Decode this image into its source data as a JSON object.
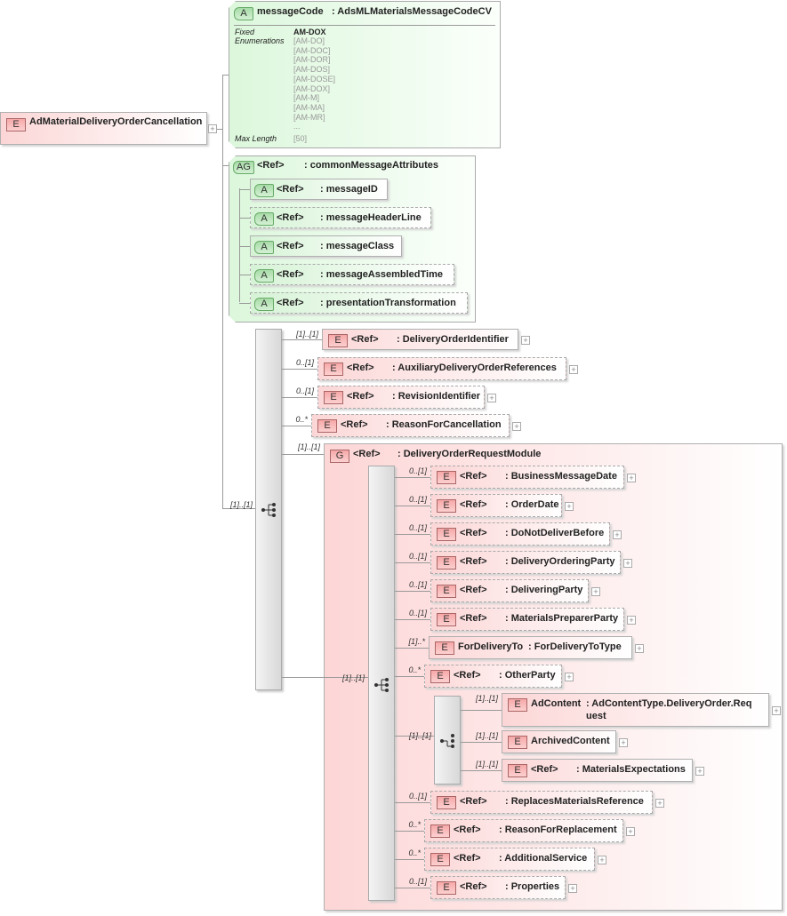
{
  "root": {
    "badge": "E",
    "name": "AdMaterialDeliveryOrderCancellation"
  },
  "message_code": {
    "badge": "A",
    "name": "messageCode",
    "type": ": AdsMLMaterialsMessageCodeCV",
    "fixed_label": "Fixed",
    "enumerations_label": "Enumerations",
    "fixed_value": "AM-DOX",
    "enumerations": [
      "[AM-DO]",
      "[AM-DOC]",
      "[AM-DOR]",
      "[AM-DOS]",
      "[AM-DOSE]",
      "[AM-DOX]",
      "[AM-M]",
      "[AM-MA]",
      "[AM-MR]"
    ],
    "more": "...",
    "max_length_label": "Max Length",
    "max_length": "[50]"
  },
  "attribute_group": {
    "badge": "AG",
    "ref": "<Ref>",
    "name": ": commonMessageAttributes",
    "attributes": [
      {
        "badge": "A",
        "ref": "<Ref>",
        "name": ": messageID"
      },
      {
        "badge": "A",
        "ref": "<Ref>",
        "name": ": messageHeaderLine"
      },
      {
        "badge": "A",
        "ref": "<Ref>",
        "name": ": messageClass"
      },
      {
        "badge": "A",
        "ref": "<Ref>",
        "name": ": messageAssembledTime"
      },
      {
        "badge": "A",
        "ref": "<Ref>",
        "name": ": presentationTransformation"
      }
    ]
  },
  "sequence": {
    "cardinality": "[1]..[1]",
    "children": [
      {
        "cardinality": "[1]..[1]",
        "badge": "E",
        "ref": "<Ref>",
        "name": ": DeliveryOrderIdentifier"
      },
      {
        "cardinality": "0..[1]",
        "badge": "E",
        "ref": "<Ref>",
        "name": ": AuxiliaryDeliveryOrderReferences"
      },
      {
        "cardinality": "0..[1]",
        "badge": "E",
        "ref": "<Ref>",
        "name": ": RevisionIdentifier"
      },
      {
        "cardinality": "0..*",
        "badge": "E",
        "ref": "<Ref>",
        "name": ": ReasonForCancellation"
      }
    ]
  },
  "group": {
    "cardinality": "[1]..[1]",
    "badge": "G",
    "ref": "<Ref>",
    "name": ": DeliveryOrderRequestModule",
    "sequence_cardinality": "[1]..[1]",
    "children": [
      {
        "cardinality": "0..[1]",
        "badge": "E",
        "ref": "<Ref>",
        "name": ": BusinessMessageDate"
      },
      {
        "cardinality": "0..[1]",
        "badge": "E",
        "ref": "<Ref>",
        "name": ": OrderDate"
      },
      {
        "cardinality": "0..[1]",
        "badge": "E",
        "ref": "<Ref>",
        "name": ": DoNotDeliverBefore"
      },
      {
        "cardinality": "0..[1]",
        "badge": "E",
        "ref": "<Ref>",
        "name": ": DeliveryOrderingParty"
      },
      {
        "cardinality": "0..[1]",
        "badge": "E",
        "ref": "<Ref>",
        "name": ": DeliveringParty"
      },
      {
        "cardinality": "0..[1]",
        "badge": "E",
        "ref": "<Ref>",
        "name": ": MaterialsPreparerParty"
      },
      {
        "cardinality": "[1]..*",
        "badge": "E",
        "ref": "ForDeliveryTo",
        "name": ": ForDeliveryToType"
      },
      {
        "cardinality": "0..*",
        "badge": "E",
        "ref": "<Ref>",
        "name": ": OtherParty"
      },
      {
        "cardinality": "0..[1]",
        "badge": "E",
        "ref": "<Ref>",
        "name": ": ReplacesMaterialsReference"
      },
      {
        "cardinality": "0..*",
        "badge": "E",
        "ref": "<Ref>",
        "name": ": ReasonForReplacement"
      },
      {
        "cardinality": "0..*",
        "badge": "E",
        "ref": "<Ref>",
        "name": ": AdditionalService"
      },
      {
        "cardinality": "0..[1]",
        "badge": "E",
        "ref": "<Ref>",
        "name": ": Properties"
      }
    ],
    "choice": {
      "cardinality": "[1]..[1]",
      "children": [
        {
          "cardinality": "[1]..[1]",
          "badge": "E",
          "ref": "AdContent",
          "name": ": AdContentType.DeliveryOrder.Request"
        },
        {
          "cardinality": "[1]..[1]",
          "badge": "E",
          "ref": "ArchivedContent",
          "name": ""
        },
        {
          "cardinality": "[1]..[1]",
          "badge": "E",
          "ref": "<Ref>",
          "name": ": MaterialsExpectations"
        }
      ]
    }
  }
}
